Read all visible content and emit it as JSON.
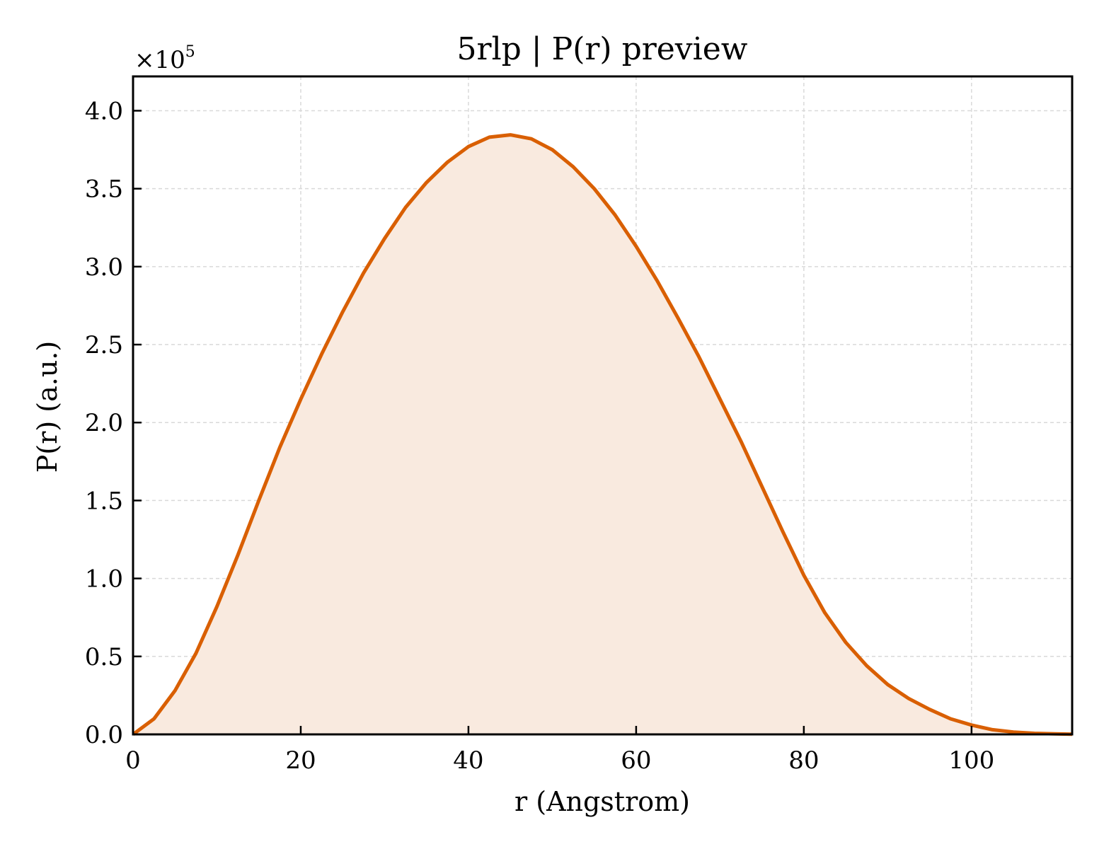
{
  "chart_data": {
    "type": "area",
    "title": "5rlp | P(r) preview",
    "xlabel": "r (Angstrom)",
    "ylabel": "P(r) (a.u.)",
    "y_multiplier_label": "×10",
    "y_multiplier_exponent": "5",
    "xlim": [
      0,
      112
    ],
    "ylim": [
      0,
      4.22
    ],
    "x_ticks": [
      0,
      20,
      40,
      60,
      80,
      100
    ],
    "x_tick_labels": [
      "0",
      "20",
      "40",
      "60",
      "80",
      "100"
    ],
    "y_ticks": [
      0,
      0.5,
      1.0,
      1.5,
      2.0,
      2.5,
      3.0,
      3.5,
      4.0
    ],
    "y_tick_labels": [
      "0.0",
      "0.5",
      "1.0",
      "1.5",
      "2.0",
      "2.5",
      "3.0",
      "3.5",
      "4.0"
    ],
    "grid": true,
    "line_color": "#d95f02",
    "fill_color": "#f9eadf",
    "series": [
      {
        "x": [
          0,
          2.5,
          5,
          7.5,
          10,
          12.5,
          15,
          17.5,
          20,
          22.5,
          25,
          27.5,
          30,
          32.5,
          35,
          37.5,
          40,
          42.5,
          45,
          47.5,
          50,
          52.5,
          55,
          57.5,
          60,
          62.5,
          65,
          67.5,
          70,
          72.5,
          75,
          77.5,
          80,
          82.5,
          85,
          87.5,
          90,
          92.5,
          95,
          97.5,
          100,
          102.5,
          105,
          107.5,
          110,
          112
        ],
        "y": [
          0.0,
          0.1,
          0.28,
          0.52,
          0.82,
          1.15,
          1.5,
          1.84,
          2.15,
          2.44,
          2.71,
          2.96,
          3.18,
          3.38,
          3.54,
          3.67,
          3.77,
          3.83,
          3.845,
          3.82,
          3.75,
          3.64,
          3.5,
          3.33,
          3.13,
          2.91,
          2.67,
          2.42,
          2.15,
          1.88,
          1.59,
          1.3,
          1.02,
          0.78,
          0.59,
          0.44,
          0.32,
          0.23,
          0.16,
          0.1,
          0.06,
          0.03,
          0.015,
          0.007,
          0.003,
          0.001
        ]
      }
    ]
  }
}
